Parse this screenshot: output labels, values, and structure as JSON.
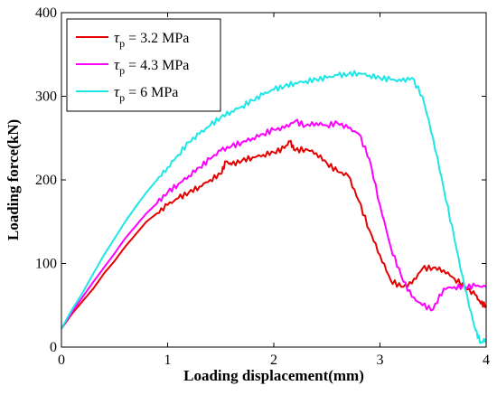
{
  "chart_data": {
    "type": "line",
    "title": "",
    "xlabel": "Loading displacement(mm)",
    "ylabel": "Loading force(kN)",
    "xlim": [
      0,
      4
    ],
    "ylim": [
      0,
      400
    ],
    "xticks": [
      0,
      1,
      2,
      3,
      4
    ],
    "yticks": [
      0,
      100,
      200,
      300,
      400
    ],
    "grid": false,
    "legend_position": "top-left",
    "legend_symbol": "τ",
    "legend_subscript": "p",
    "series": [
      {
        "name": "= 3.2 MPa",
        "color": "#e60000",
        "x": [
          0,
          0.1,
          0.2,
          0.3,
          0.4,
          0.5,
          0.6,
          0.7,
          0.8,
          0.9,
          1.0,
          1.1,
          1.2,
          1.3,
          1.4,
          1.5,
          1.55,
          1.6,
          1.7,
          1.8,
          1.9,
          2.0,
          2.1,
          2.15,
          2.2,
          2.3,
          2.4,
          2.5,
          2.6,
          2.7,
          2.8,
          2.9,
          3.0,
          3.1,
          3.2,
          3.3,
          3.4,
          3.5,
          3.6,
          3.7,
          3.8,
          3.9,
          3.95,
          4.0
        ],
        "values": [
          22,
          40,
          55,
          70,
          88,
          103,
          120,
          135,
          150,
          160,
          170,
          178,
          185,
          192,
          200,
          207,
          222,
          218,
          223,
          227,
          230,
          233,
          238,
          246,
          235,
          237,
          232,
          220,
          210,
          205,
          175,
          140,
          110,
          80,
          72,
          76,
          94,
          95,
          92,
          82,
          72,
          62,
          52,
          50
        ]
      },
      {
        "name": "= 4.3 MPa",
        "color": "#ff00ff",
        "x": [
          0,
          0.1,
          0.2,
          0.3,
          0.4,
          0.5,
          0.6,
          0.7,
          0.8,
          0.9,
          1.0,
          1.1,
          1.2,
          1.3,
          1.4,
          1.5,
          1.6,
          1.7,
          1.8,
          1.9,
          2.0,
          2.1,
          2.2,
          2.3,
          2.4,
          2.5,
          2.6,
          2.7,
          2.8,
          2.9,
          3.0,
          3.1,
          3.2,
          3.3,
          3.4,
          3.5,
          3.6,
          3.7,
          3.8,
          3.9,
          4.0
        ],
        "values": [
          22,
          42,
          60,
          78,
          95,
          112,
          130,
          145,
          160,
          172,
          185,
          195,
          205,
          215,
          225,
          235,
          240,
          245,
          250,
          255,
          260,
          262,
          270,
          265,
          268,
          265,
          268,
          262,
          255,
          225,
          170,
          120,
          85,
          60,
          50,
          45,
          70,
          72,
          72,
          73,
          72
        ]
      },
      {
        "name": "= 6 MPa",
        "color": "#1ee6e6",
        "x": [
          0,
          0.1,
          0.2,
          0.3,
          0.4,
          0.5,
          0.6,
          0.7,
          0.8,
          0.9,
          1.0,
          1.1,
          1.2,
          1.3,
          1.4,
          1.5,
          1.6,
          1.7,
          1.8,
          1.9,
          2.0,
          2.1,
          2.2,
          2.3,
          2.4,
          2.5,
          2.6,
          2.7,
          2.8,
          2.9,
          3.0,
          3.1,
          3.2,
          3.3,
          3.4,
          3.5,
          3.6,
          3.7,
          3.8,
          3.9,
          3.95,
          4.0
        ],
        "values": [
          22,
          45,
          65,
          88,
          110,
          130,
          150,
          168,
          185,
          200,
          215,
          230,
          245,
          255,
          265,
          275,
          282,
          288,
          295,
          302,
          308,
          312,
          316,
          318,
          320,
          322,
          325,
          326,
          328,
          325,
          322,
          320,
          318,
          322,
          300,
          250,
          190,
          130,
          70,
          20,
          5,
          10
        ]
      }
    ]
  }
}
